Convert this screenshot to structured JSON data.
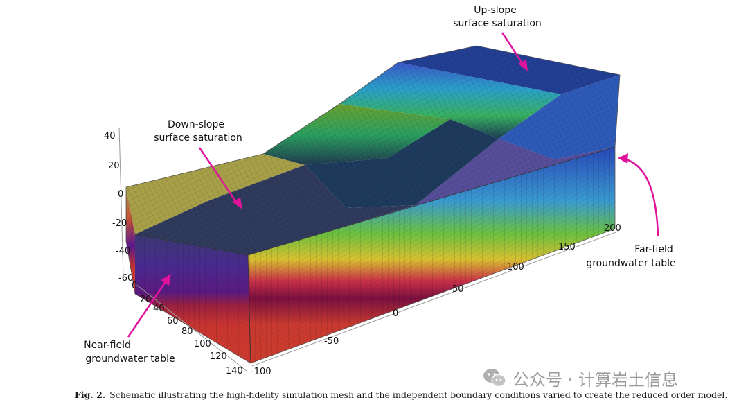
{
  "annotations": {
    "upslope": [
      "Up-slope",
      "surface saturation"
    ],
    "downslope": [
      "Down-slope",
      "surface saturation"
    ],
    "farfield": [
      "Far-field",
      "groundwater table"
    ],
    "nearfield": [
      "Near-field",
      "groundwater table"
    ]
  },
  "axes": {
    "z_ticks": [
      "40",
      "20",
      "0",
      "-20",
      "-40",
      "-60"
    ],
    "y_ticks": [
      "0",
      "20",
      "40",
      "60",
      "80",
      "100",
      "120",
      "140"
    ],
    "x_ticks": [
      "-100",
      "-50",
      "0",
      "50",
      "100",
      "150",
      "200"
    ]
  },
  "caption": {
    "label": "Fig. 2.",
    "text": "Schematic illustrating the high-fidelity simulation mesh and the independent boundary conditions varied to create the reduced order model."
  },
  "watermark": {
    "text": "公众号 · 计算岩土信息",
    "icon": "wechat-icon"
  },
  "colors": {
    "arrow": "#e0149c",
    "soil": "#c8382c",
    "top": "#1e3c8c"
  }
}
